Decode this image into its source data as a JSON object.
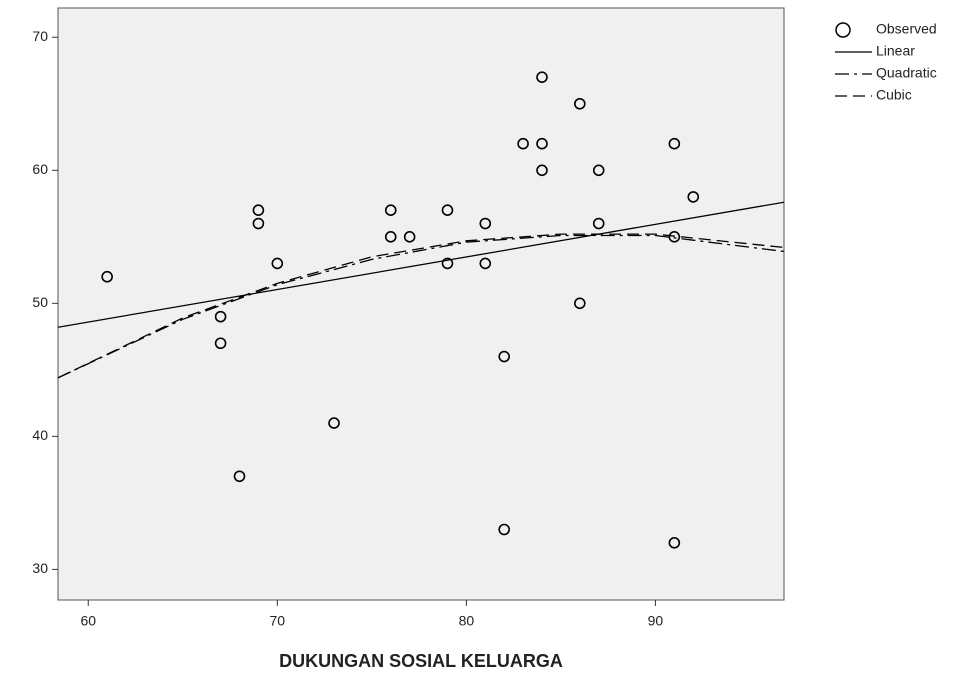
{
  "chart_data": {
    "type": "scatter",
    "x_label": "DUKUNGAN SOSIAL KELUARGA",
    "xlim": [
      58.4,
      96.8
    ],
    "xticks": [
      60,
      70,
      80,
      90
    ],
    "ylim": [
      27.7,
      72.2
    ],
    "yticks": [
      30,
      40,
      50,
      60,
      70
    ],
    "series": [
      {
        "name": "Observed",
        "style": "marker",
        "color": "#000000",
        "x": [
          61,
          67,
          67,
          68,
          69,
          69,
          70,
          73,
          76,
          76,
          77,
          79,
          79,
          81,
          81,
          82,
          82,
          83,
          84,
          84,
          84,
          86,
          86,
          87,
          87,
          91,
          91,
          91,
          92
        ],
        "values": [
          52,
          49,
          47,
          37,
          57,
          56,
          53,
          41,
          57,
          55,
          55,
          57,
          53,
          56,
          53,
          46,
          33,
          62,
          67,
          62,
          60,
          65,
          50,
          60,
          56,
          62,
          55,
          32,
          58
        ]
      },
      {
        "name": "Linear",
        "style": "solid",
        "color": "#000000",
        "x": [
          58.4,
          96.8
        ],
        "values": [
          48.2,
          57.6
        ]
      },
      {
        "name": "Quadratic",
        "style": "dashdot",
        "color": "#000000",
        "x": [
          58.4,
          65,
          70,
          75,
          80,
          85,
          90,
          96.8
        ],
        "values": [
          44.4,
          48.8,
          51.4,
          53.3,
          54.6,
          55.1,
          55.1,
          53.9
        ]
      },
      {
        "name": "Cubic",
        "style": "dashed",
        "color": "#000000",
        "x": [
          58.4,
          65,
          70,
          75,
          80,
          85,
          90,
          96.8
        ],
        "values": [
          44.4,
          48.9,
          51.5,
          53.5,
          54.7,
          55.2,
          55.2,
          54.2
        ]
      }
    ]
  }
}
